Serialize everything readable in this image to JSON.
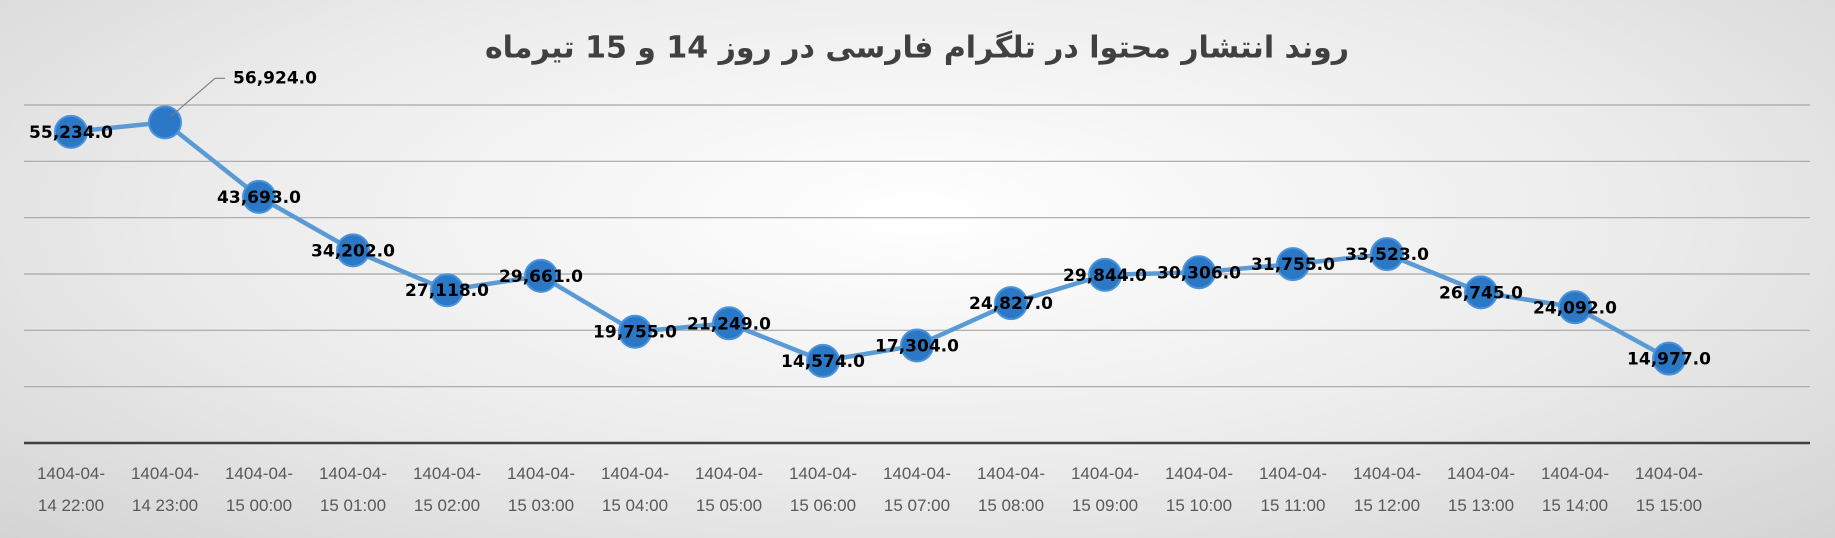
{
  "chart_data": {
    "type": "line",
    "title": "روند انتشار محتوا در تلگرام  فارسی در روز 14 و 15 تیرماه",
    "categories": [
      "1404-04-14 22:00",
      "1404-04-14 23:00",
      "1404-04-15 00:00",
      "1404-04-15 01:00",
      "1404-04-15 02:00",
      "1404-04-15 03:00",
      "1404-04-15 04:00",
      "1404-04-15 05:00",
      "1404-04-15 06:00",
      "1404-04-15 07:00",
      "1404-04-15 08:00",
      "1404-04-15 09:00",
      "1404-04-15 10:00",
      "1404-04-15 11:00",
      "1404-04-15 12:00",
      "1404-04-15 13:00",
      "1404-04-15 14:00",
      "1404-04-15 15:00"
    ],
    "values": [
      55234,
      56924,
      43693,
      34202,
      27118,
      29661,
      19755,
      21249,
      14574,
      17304,
      24827,
      29844,
      30306,
      31755,
      33523,
      26745,
      24092,
      14977
    ],
    "value_labels": [
      "55,234.0",
      "56,924.0",
      "43,693.0",
      "34,202.0",
      "27,118.0",
      "29,661.0",
      "19,755.0",
      "21,249.0",
      "14,574.0",
      "17,304.0",
      "24,827.0",
      "29,844.0",
      "30,306.0",
      "31,755.0",
      "33,523.0",
      "26,745.0",
      "24,092.0",
      "14,977.0"
    ],
    "color": "#5b9bd5",
    "ylim": [
      0,
      60000
    ],
    "yticks": [
      0,
      10000,
      20000,
      30000,
      40000,
      50000,
      60000
    ],
    "grid": true
  }
}
